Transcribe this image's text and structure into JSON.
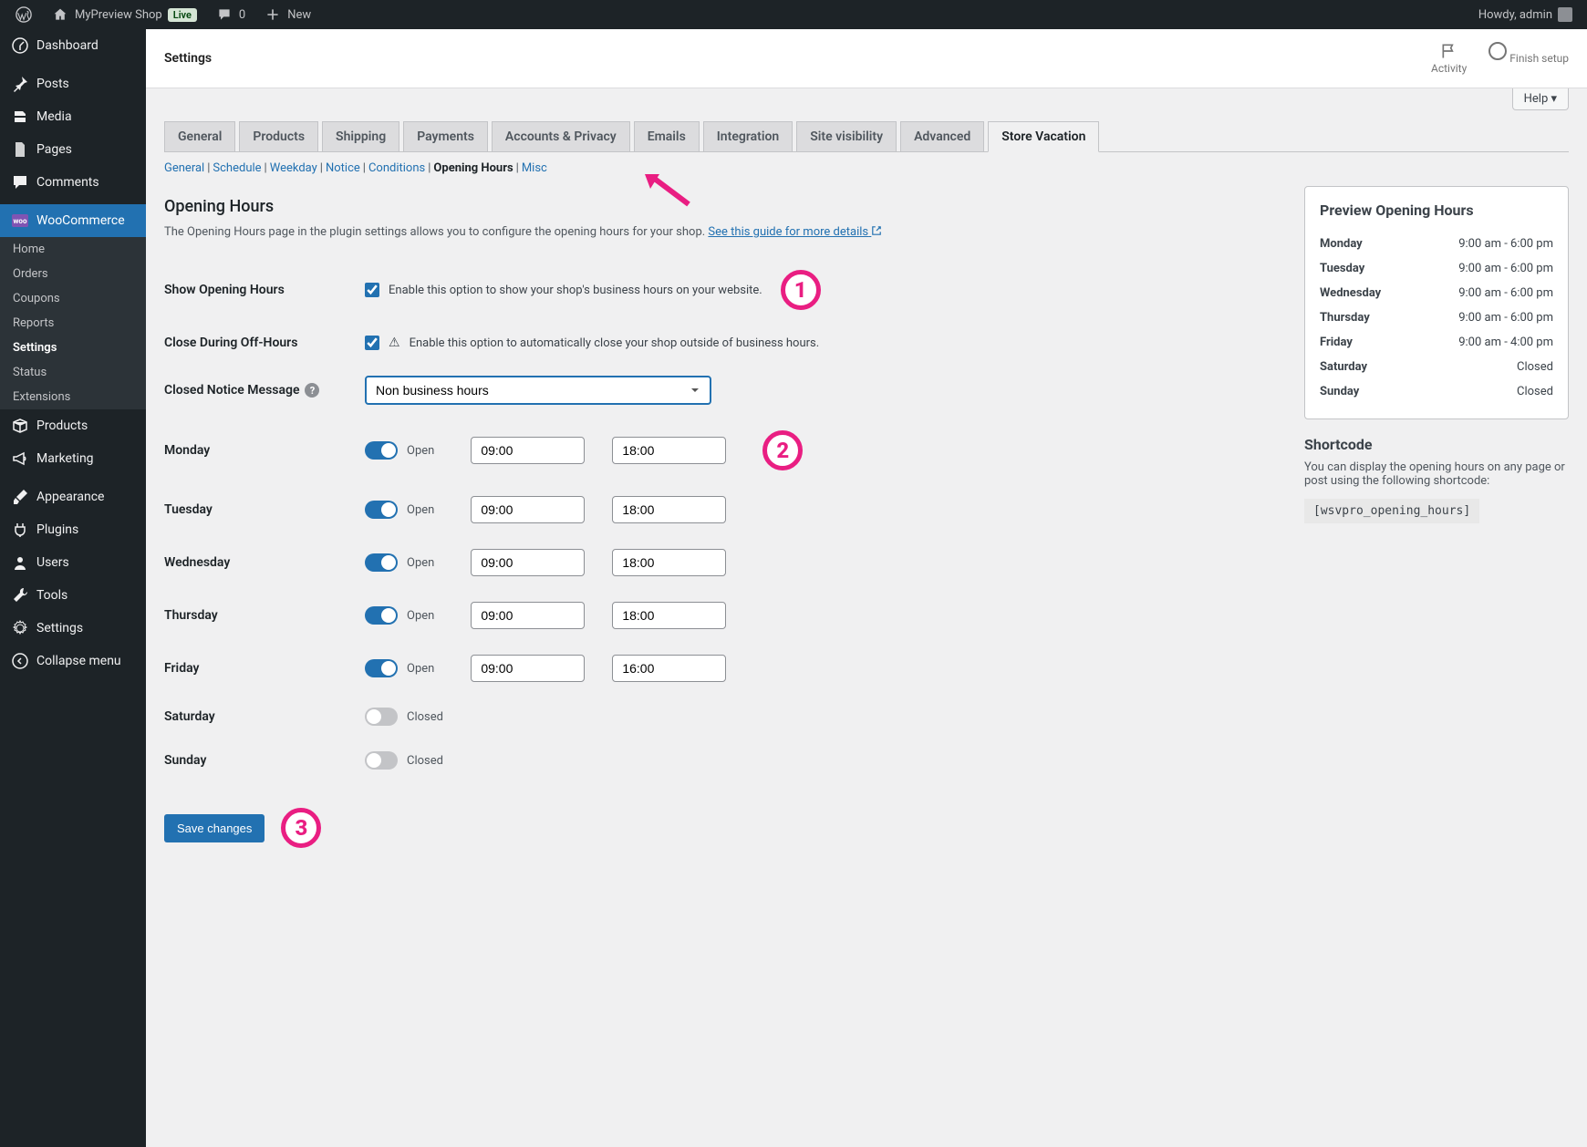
{
  "adminbar": {
    "site_name": "MyPreview Shop",
    "live_badge": "Live",
    "comments_count": "0",
    "new_label": "New",
    "howdy": "Howdy, admin"
  },
  "sidebar": {
    "items": [
      {
        "label": "Dashboard",
        "icon": "dashboard"
      },
      {
        "label": "Posts",
        "icon": "pin"
      },
      {
        "label": "Media",
        "icon": "media"
      },
      {
        "label": "Pages",
        "icon": "page"
      },
      {
        "label": "Comments",
        "icon": "comment"
      },
      {
        "label": "WooCommerce",
        "icon": "woo",
        "current": true
      },
      {
        "label": "Products",
        "icon": "box"
      },
      {
        "label": "Marketing",
        "icon": "megaphone"
      },
      {
        "label": "Appearance",
        "icon": "brush"
      },
      {
        "label": "Plugins",
        "icon": "plug"
      },
      {
        "label": "Users",
        "icon": "user"
      },
      {
        "label": "Tools",
        "icon": "wrench"
      },
      {
        "label": "Settings",
        "icon": "gear"
      },
      {
        "label": "Collapse menu",
        "icon": "collapse"
      }
    ],
    "submenu": [
      {
        "label": "Home"
      },
      {
        "label": "Orders"
      },
      {
        "label": "Coupons"
      },
      {
        "label": "Reports"
      },
      {
        "label": "Settings",
        "current": true
      },
      {
        "label": "Status"
      },
      {
        "label": "Extensions"
      }
    ]
  },
  "header": {
    "title": "Settings",
    "activity": "Activity",
    "finish": "Finish setup",
    "help": "Help ▾"
  },
  "tabs": [
    "General",
    "Products",
    "Shipping",
    "Payments",
    "Accounts & Privacy",
    "Emails",
    "Integration",
    "Site visibility",
    "Advanced",
    "Store Vacation"
  ],
  "active_tab_index": 9,
  "subtabs": [
    "General",
    "Schedule",
    "Weekday",
    "Notice",
    "Conditions",
    "Opening Hours",
    "Misc"
  ],
  "active_subtab_index": 5,
  "section": {
    "title": "Opening Hours",
    "desc": "The Opening Hours page in the plugin settings allows you to configure the opening hours for your shop. ",
    "guide_link": "See this guide for more details"
  },
  "fields": {
    "show_hours": {
      "label": "Show Opening Hours",
      "checkbox_label": "Enable this option to show your shop's business hours on your website.",
      "checked": true
    },
    "close_off": {
      "label": "Close During Off-Hours",
      "checkbox_label": "Enable this option to automatically close your shop outside of business hours.",
      "checked": true
    },
    "closed_notice": {
      "label": "Closed Notice Message",
      "value": "Non business hours"
    }
  },
  "days": [
    {
      "name": "Monday",
      "open": true,
      "status": "Open",
      "start": "09:00",
      "end": "18:00"
    },
    {
      "name": "Tuesday",
      "open": true,
      "status": "Open",
      "start": "09:00",
      "end": "18:00"
    },
    {
      "name": "Wednesday",
      "open": true,
      "status": "Open",
      "start": "09:00",
      "end": "18:00"
    },
    {
      "name": "Thursday",
      "open": true,
      "status": "Open",
      "start": "09:00",
      "end": "18:00"
    },
    {
      "name": "Friday",
      "open": true,
      "status": "Open",
      "start": "09:00",
      "end": "16:00"
    },
    {
      "name": "Saturday",
      "open": false,
      "status": "Closed"
    },
    {
      "name": "Sunday",
      "open": false,
      "status": "Closed"
    }
  ],
  "save_label": "Save changes",
  "preview": {
    "title": "Preview Opening Hours",
    "rows": [
      {
        "day": "Monday",
        "hours": "9:00 am - 6:00 pm"
      },
      {
        "day": "Tuesday",
        "hours": "9:00 am - 6:00 pm"
      },
      {
        "day": "Wednesday",
        "hours": "9:00 am - 6:00 pm"
      },
      {
        "day": "Thursday",
        "hours": "9:00 am - 6:00 pm"
      },
      {
        "day": "Friday",
        "hours": "9:00 am - 4:00 pm"
      },
      {
        "day": "Saturday",
        "hours": "Closed"
      },
      {
        "day": "Sunday",
        "hours": "Closed"
      }
    ]
  },
  "shortcode": {
    "title": "Shortcode",
    "desc": "You can display the opening hours on any page or post using the following shortcode:",
    "code": "[wsvpro_opening_hours]"
  },
  "annotations": {
    "badge1": "1",
    "badge2": "2",
    "badge3": "3",
    "arrow_color": "#e91e82"
  },
  "colors": {
    "accent": "#2271b1",
    "annotation": "#e91e82"
  }
}
